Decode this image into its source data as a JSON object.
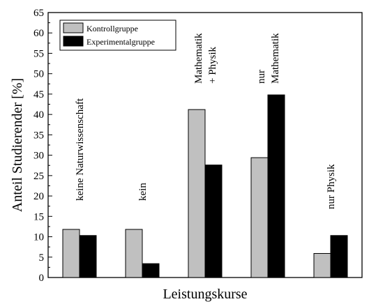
{
  "chart_data": {
    "type": "bar",
    "xlabel": "Leistungskurse",
    "ylabel": "Anteil Studierender [%]",
    "ylim": [
      0,
      65
    ],
    "yticks": [
      0,
      5,
      10,
      15,
      20,
      25,
      30,
      35,
      40,
      45,
      50,
      55,
      60,
      65
    ],
    "legend_position": "top-left",
    "categories": [
      [
        "keine Naturwissenschaft"
      ],
      [
        "kein"
      ],
      [
        "Mathematik",
        "+ Physik"
      ],
      [
        "nur",
        "Mathematik"
      ],
      [
        "nur Physik"
      ]
    ],
    "series": [
      {
        "name": "Kontrollgruppe",
        "color": "#c0c0c0",
        "values": [
          11.8,
          11.8,
          41.2,
          29.4,
          5.9
        ]
      },
      {
        "name": "Experimentalgruppe",
        "color": "#000000",
        "values": [
          10.3,
          3.4,
          27.6,
          44.8,
          10.3
        ]
      }
    ]
  }
}
